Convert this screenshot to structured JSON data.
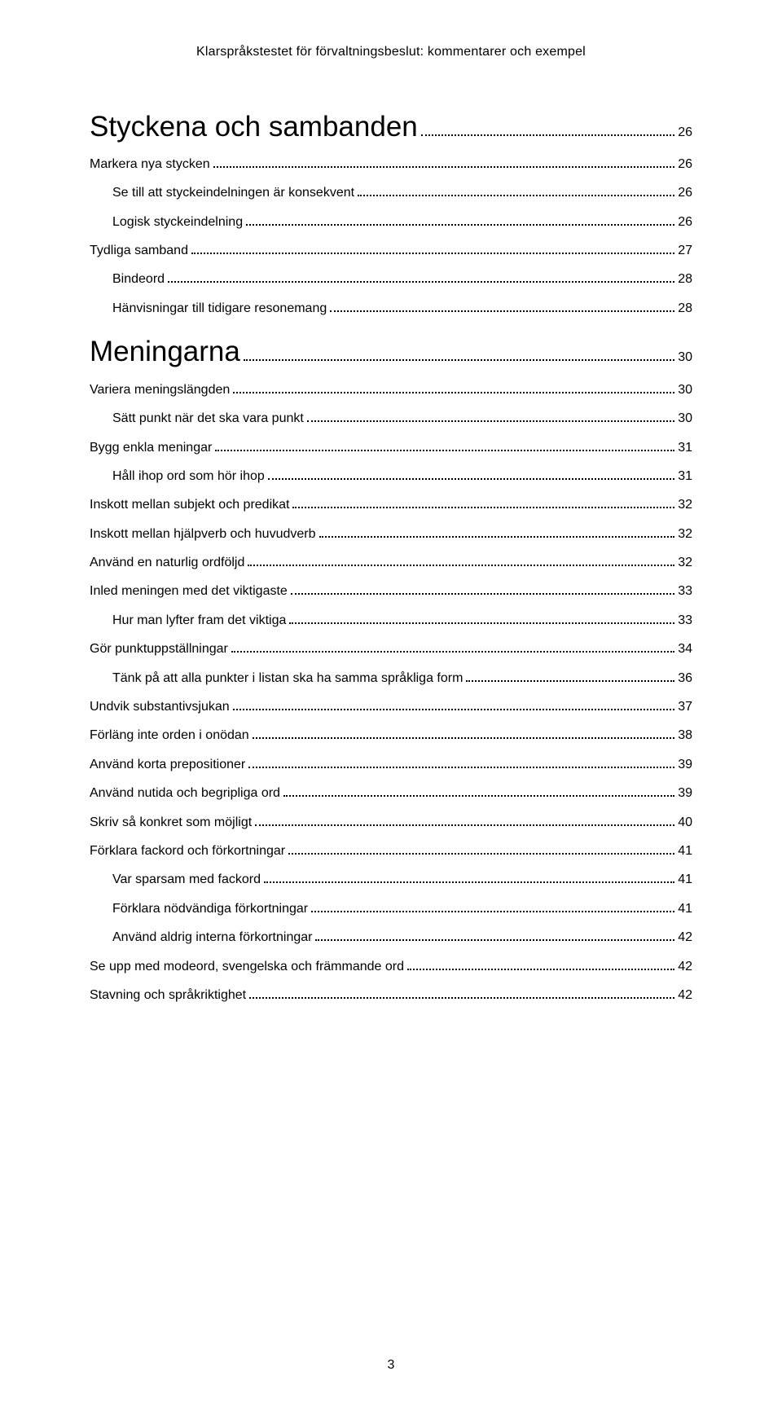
{
  "header": "Klarspråkstestet för förvaltningsbeslut: kommentarer och exempel",
  "pageNumber": "3",
  "entries": [
    {
      "label": "Styckena och sambanden",
      "page": "26",
      "level": 0
    },
    {
      "label": "Markera nya stycken",
      "page": "26",
      "level": 1
    },
    {
      "label": "Se till att styckeindelningen är konsekvent",
      "page": "26",
      "level": 2
    },
    {
      "label": "Logisk styckeindelning",
      "page": "26",
      "level": 2
    },
    {
      "label": "Tydliga samband",
      "page": "27",
      "level": 1
    },
    {
      "label": "Bindeord",
      "page": "28",
      "level": 2
    },
    {
      "label": "Hänvisningar till tidigare resonemang",
      "page": "28",
      "level": 2
    },
    {
      "label": "Meningarna",
      "page": "30",
      "level": 0
    },
    {
      "label": "Variera meningslängden",
      "page": "30",
      "level": 1
    },
    {
      "label": "Sätt punkt när det ska vara punkt",
      "page": "30",
      "level": 2
    },
    {
      "label": "Bygg enkla meningar",
      "page": "31",
      "level": 1
    },
    {
      "label": "Håll ihop ord som hör ihop",
      "page": "31",
      "level": 2
    },
    {
      "label": "Inskott mellan subjekt och predikat",
      "page": "32",
      "level": 1
    },
    {
      "label": "Inskott mellan hjälpverb och huvudverb",
      "page": "32",
      "level": 1
    },
    {
      "label": "Använd en naturlig ordföljd",
      "page": "32",
      "level": 1
    },
    {
      "label": "Inled meningen med det viktigaste",
      "page": "33",
      "level": 1
    },
    {
      "label": "Hur man lyfter fram det viktiga",
      "page": "33",
      "level": 2
    },
    {
      "label": "Gör punktuppställningar",
      "page": "34",
      "level": 1
    },
    {
      "label": "Tänk på att alla punkter i listan ska ha samma språkliga form",
      "page": "36",
      "level": 2
    },
    {
      "label": "Undvik substantivsjukan",
      "page": "37",
      "level": 1
    },
    {
      "label": "Förläng inte orden i onödan",
      "page": "38",
      "level": 1
    },
    {
      "label": "Använd korta prepositioner",
      "page": "39",
      "level": 1
    },
    {
      "label": "Använd nutida och begripliga ord",
      "page": "39",
      "level": 1
    },
    {
      "label": "Skriv så konkret som möjligt",
      "page": "40",
      "level": 1
    },
    {
      "label": "Förklara fackord och förkortningar",
      "page": "41",
      "level": 1
    },
    {
      "label": "Var sparsam med fackord",
      "page": "41",
      "level": 2
    },
    {
      "label": "Förklara nödvändiga förkortningar",
      "page": "41",
      "level": 2
    },
    {
      "label": "Använd aldrig interna förkortningar",
      "page": "42",
      "level": 2
    },
    {
      "label": "Se upp med modeord, svengelska och främmande ord",
      "page": "42",
      "level": 1
    },
    {
      "label": "Stavning och språkriktighet",
      "page": "42",
      "level": 1
    }
  ]
}
